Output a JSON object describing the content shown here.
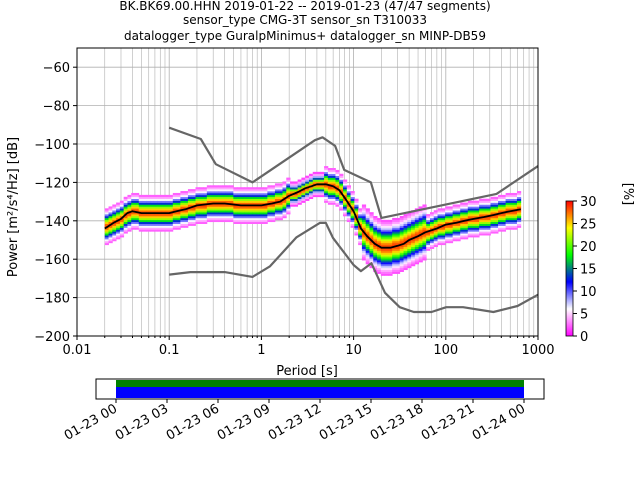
{
  "title_lines": [
    "BK.BK69.00.HHN   2019-01-22 -- 2019-01-23  (47/47 segments)",
    "sensor_type CMG-3T sensor_sn T310033",
    "datalogger_type GuralpMinimus+ datalogger_sn MINP-DB59"
  ],
  "chart_data": {
    "type": "heatmap",
    "title": "BK.BK69.00.HHN   2019-01-22 -- 2019-01-23  (47/47 segments)",
    "xlabel": "Period [s]",
    "ylabel": "Power [m²/s⁴/Hz] [dB]",
    "xscale": "log",
    "xlim": [
      0.01,
      1000
    ],
    "ylim": [
      -200,
      -50
    ],
    "x_tick_labels": [
      "0.01",
      "0.1",
      "1",
      "10",
      "100",
      "1000"
    ],
    "y_tick_labels": [
      "−200",
      "−180",
      "−160",
      "−140",
      "−120",
      "−100",
      "−80",
      "−60"
    ],
    "grid": true,
    "colorbar": {
      "label": "[%]",
      "range": [
        0,
        30
      ],
      "tick_labels": [
        "0",
        "5",
        "10",
        "15",
        "20",
        "25",
        "30"
      ],
      "colors": [
        "#ff00ff",
        "#ffffff",
        "#0000ff",
        "#00ff00",
        "#ffff00",
        "#ff0000"
      ]
    },
    "noise_model_color": "#666666",
    "mean_curve_color": "#000000",
    "high_noise_model": {
      "x": [
        0.1,
        0.22,
        0.32,
        0.8,
        3.8,
        4.6,
        6.3,
        7.9,
        15.4,
        20,
        354.8,
        1000
      ],
      "y": [
        -91.5,
        -97.4,
        -110.5,
        -120,
        -98.0,
        -96.5,
        -101.0,
        -113.5,
        -120,
        -138.5,
        -126,
        -111.5
      ]
    },
    "low_noise_model": {
      "x": [
        0.1,
        0.17,
        0.4,
        0.8,
        1.24,
        2.4,
        4.3,
        5.0,
        6.0,
        10,
        12,
        15.6,
        21.9,
        31.6,
        45,
        70,
        101,
        154,
        328,
        600,
        1000
      ],
      "y": [
        -168,
        -166.7,
        -166.7,
        -169.2,
        -163.7,
        -148.6,
        -141.1,
        -141.1,
        -149.0,
        -163.0,
        -166.2,
        -162.1,
        -177.5,
        -185.0,
        -187.5,
        -187.5,
        -185.0,
        -185.0,
        -187.5,
        -184.4,
        -178.5
      ]
    },
    "mean_psd": {
      "x": [
        0.02,
        0.025,
        0.03,
        0.035,
        0.04,
        0.05,
        0.06,
        0.08,
        0.1,
        0.12,
        0.15,
        0.2,
        0.3,
        0.4,
        0.6,
        0.8,
        1.0,
        1.3,
        1.6,
        2.0,
        2.5,
        3.0,
        3.5,
        4.0,
        5.0,
        6.0,
        7.0,
        8.0,
        10,
        12,
        14,
        17,
        20,
        25,
        30,
        35,
        40,
        50,
        60,
        80,
        100,
        130,
        160,
        200,
        260,
        330,
        400,
        500,
        650
      ],
      "y": [
        -144,
        -141,
        -139,
        -136,
        -135,
        -136,
        -136,
        -136,
        -136,
        -135,
        -134,
        -132,
        -131,
        -131,
        -132,
        -132,
        -132,
        -131,
        -130,
        -127,
        -125,
        -123,
        -122,
        -121,
        -121,
        -122,
        -124,
        -128,
        -135,
        -144,
        -148,
        -152,
        -154,
        -154,
        -153,
        -152,
        -150,
        -148,
        -146,
        -144,
        -142,
        -141,
        -140,
        -139,
        -138,
        -137,
        -136,
        -135,
        -134
      ]
    },
    "time_axis": {
      "tick_labels": [
        "01-23 00",
        "01-23 03",
        "01-23 06",
        "01-23 09",
        "01-23 12",
        "01-23 15",
        "01-23 18",
        "01-23 21",
        "01-24 00"
      ],
      "coverage_colors": [
        "#008000",
        "#0000ff"
      ]
    }
  }
}
